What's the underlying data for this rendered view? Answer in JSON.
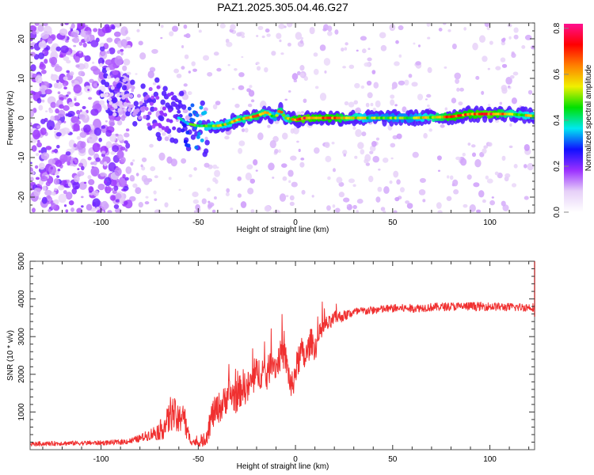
{
  "title": "PAZ1.2025.305.04.46.G27",
  "chart_data": [
    {
      "type": "heatmap",
      "name": "spectrogram",
      "title": "PAZ1.2025.305.04.46.G27",
      "xlabel": "Height of straight line (km)",
      "ylabel": "Frequency (Hz)",
      "xlim": [
        -136.5,
        123
      ],
      "ylim": [
        -24,
        24
      ],
      "xticks": [
        -100,
        -50,
        0,
        50,
        100
      ],
      "xtick_labels": [
        "-100",
        "-50",
        "0",
        "50",
        "100"
      ],
      "yticks": [
        -20,
        -10,
        0,
        10,
        20
      ],
      "ytick_labels": [
        "-20",
        "-10",
        "0",
        "10",
        "20"
      ],
      "grid": false,
      "colorbar": {
        "label": "Normalized spectral amplitude",
        "range": [
          0.0,
          0.82
        ],
        "ticks": [
          0.0,
          0.2,
          0.4,
          0.6,
          0.8
        ],
        "tick_labels": [
          "0.0",
          "0.2",
          "0.4",
          "0.6",
          "0.8"
        ],
        "colors": [
          "#ffffff",
          "#e6d0f8",
          "#9b30ff",
          "#1010ff",
          "#00e8f0",
          "#00e000",
          "#f0f000",
          "#ff8000",
          "#ff0000",
          "#ff1090"
        ]
      },
      "signal_track": {
        "description": "Frequency of strongest return vs height",
        "x": [
          -100,
          -90,
          -80,
          -75,
          -70,
          -65,
          -60,
          -55,
          -50,
          -45,
          -40,
          -35,
          -30,
          -25,
          -20,
          -15,
          -12,
          -10,
          -8,
          -5,
          0,
          5,
          10,
          20,
          40,
          60,
          80,
          90,
          100,
          110,
          123
        ],
        "y": [
          7,
          6,
          4,
          3,
          2,
          1,
          0,
          -1.5,
          -2,
          -2,
          -2,
          -1.5,
          -0.5,
          0,
          0.5,
          1.5,
          0.5,
          0.3,
          2,
          0,
          -0.5,
          0,
          0,
          0,
          0,
          0,
          0.3,
          1,
          1,
          1,
          0.5
        ],
        "amplitude": [
          0.1,
          0.15,
          0.2,
          0.25,
          0.28,
          0.3,
          0.35,
          0.45,
          0.5,
          0.55,
          0.55,
          0.55,
          0.6,
          0.6,
          0.65,
          0.6,
          0.55,
          0.5,
          0.65,
          0.55,
          0.7,
          0.75,
          0.7,
          0.7,
          0.5,
          0.5,
          0.7,
          0.7,
          0.75,
          0.6,
          0.55
        ]
      },
      "noise_level": {
        "description": "Background scattered noise density: high for x<-85, low elsewhere",
        "dense_region_xmax": -85
      }
    },
    {
      "type": "line",
      "name": "snr",
      "xlabel": "Height of straight line (km)",
      "ylabel": "SNR (10 * v/v)",
      "xlim": [
        -136.5,
        123
      ],
      "ylim": [
        0,
        5000
      ],
      "xticks": [
        -100,
        -50,
        0,
        50,
        100
      ],
      "xtick_labels": [
        "-100",
        "-50",
        "0",
        "50",
        "100"
      ],
      "yticks": [
        1000,
        2000,
        3000,
        4000,
        5000
      ],
      "ytick_labels": [
        "1000",
        "2000",
        "3000",
        "4000",
        "5000"
      ],
      "grid": false,
      "line_color": "#f03030",
      "series": [
        {
          "name": "SNR",
          "x": [
            -136,
            -120,
            -100,
            -90,
            -85,
            -80,
            -75,
            -70,
            -66,
            -64,
            -62,
            -60,
            -58,
            -56,
            -54,
            -52,
            -50,
            -47,
            -45,
            -43,
            -40,
            -37,
            -35,
            -30,
            -27,
            -25,
            -20,
            -17,
            -15,
            -12,
            -10,
            -7,
            -5,
            -2,
            0,
            3,
            5,
            8,
            10,
            13,
            15,
            18,
            20,
            25,
            30,
            40,
            50,
            60,
            70,
            80,
            90,
            100,
            110,
            123
          ],
          "y": [
            150,
            170,
            180,
            200,
            230,
            300,
            400,
            500,
            700,
            1000,
            900,
            700,
            1100,
            500,
            250,
            200,
            180,
            220,
            500,
            900,
            1100,
            1200,
            1500,
            1400,
            1700,
            1600,
            2000,
            2100,
            1900,
            2400,
            2200,
            2600,
            2400,
            1600,
            2100,
            2600,
            2400,
            2900,
            2700,
            3100,
            3300,
            3350,
            3500,
            3550,
            3650,
            3700,
            3750,
            3750,
            3780,
            3800,
            3800,
            3800,
            3780,
            3780
          ],
          "noise_amplitude": [
            60,
            60,
            60,
            70,
            80,
            100,
            150,
            250,
            400,
            500,
            450,
            400,
            500,
            300,
            120,
            100,
            90,
            150,
            300,
            400,
            400,
            450,
            450,
            450,
            450,
            450,
            450,
            450,
            450,
            400,
            400,
            400,
            400,
            400,
            400,
            400,
            400,
            350,
            350,
            300,
            250,
            200,
            180,
            150,
            120,
            110,
            110,
            110,
            110,
            110,
            120,
            110,
            110,
            110
          ]
        }
      ]
    }
  ]
}
